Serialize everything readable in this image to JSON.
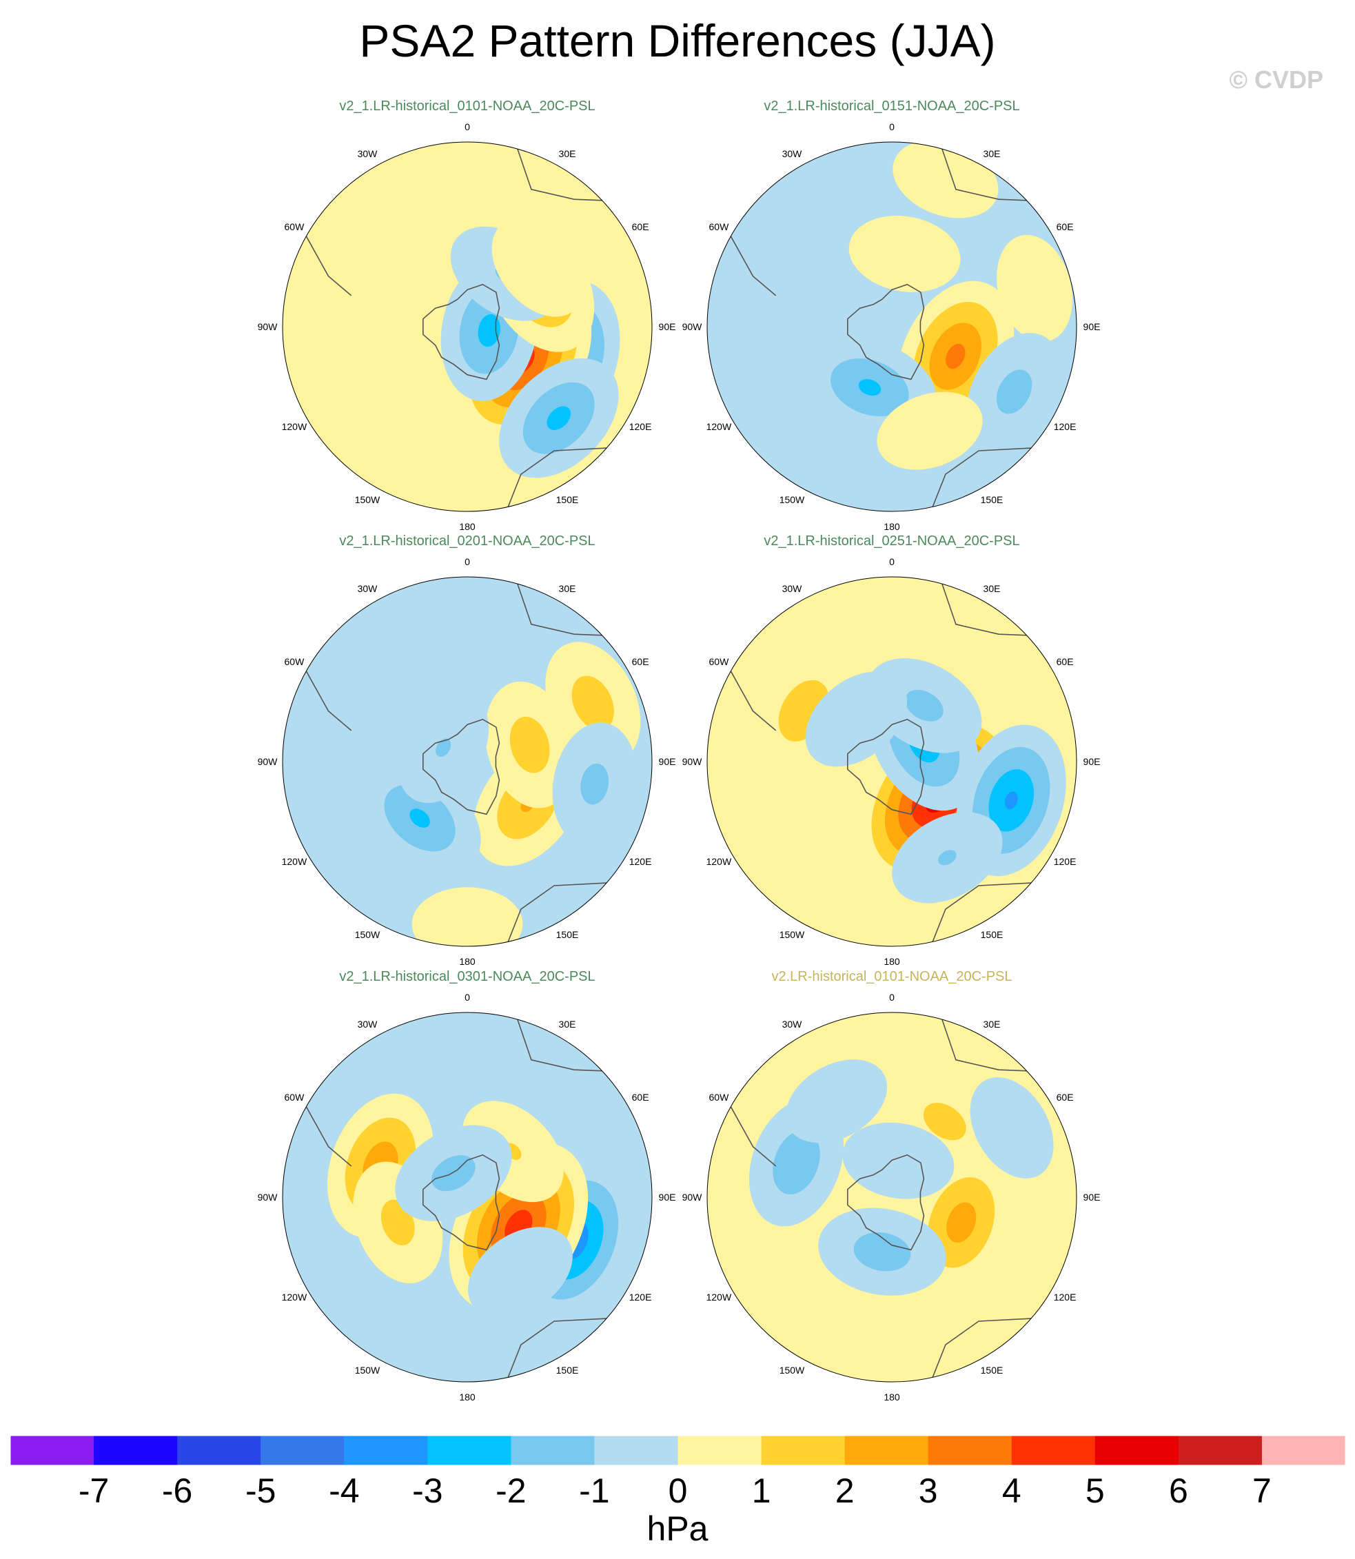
{
  "title": "PSA2 Pattern Differences (JJA)",
  "copyright": "© CVDP",
  "colors": {
    "panel_title_default": "#4a8a5a",
    "panel_title_obs": "#c6b45a",
    "land_outline": "#555555",
    "map_border": "#000000"
  },
  "longitude_labels": {
    "top": "0",
    "upper_left": "30W",
    "upper_right": "30E",
    "left_high": "60W",
    "right_high": "60E",
    "left_mid": "90W",
    "right_mid": "90E",
    "left_low": "120W",
    "right_low": "120E",
    "lower_left": "150W",
    "lower_right": "150E",
    "bottom": "180"
  },
  "colorbar": {
    "units": "hPa",
    "ticks": [
      "-7",
      "-6",
      "-5",
      "-4",
      "-3",
      "-2",
      "-1",
      "0",
      "1",
      "2",
      "3",
      "4",
      "5",
      "6",
      "7"
    ],
    "colors": [
      "#8a1cf0",
      "#1e05ff",
      "#2847e6",
      "#3478ea",
      "#1e96ff",
      "#00c3ff",
      "#78c8f0",
      "#b4dcf0",
      "#fff5a0",
      "#ffd230",
      "#ffaa0a",
      "#ff780a",
      "#ff3205",
      "#e60000",
      "#cd1e1e",
      "#ffb4b4"
    ]
  },
  "chart_data": {
    "type": "heatmap",
    "description_units": "hPa",
    "projection": "south-polar stereographic",
    "panels": [
      {
        "title": "v2_1.LR-historical_0101-NOAA_20C-PSL",
        "background": 0.5,
        "features": [
          {
            "lon": 108,
            "colat": 0.55,
            "value": -3.6
          },
          {
            "lon": 120,
            "colat": 0.35,
            "value": 4.8
          },
          {
            "lon": 100,
            "colat": 0.12,
            "value": -2.6
          },
          {
            "lon": 60,
            "colat": 0.45,
            "value": 2.7
          },
          {
            "lon": 35,
            "colat": 0.35,
            "value": -1.2
          },
          {
            "lon": 135,
            "colat": 0.7,
            "value": -2.5
          },
          {
            "lon": 50,
            "colat": 0.5,
            "value": 0.8
          }
        ]
      },
      {
        "title": "v2_1.LR-historical_0151-NOAA_20C-PSL",
        "background": -0.5,
        "features": [
          {
            "lon": 75,
            "colat": 0.8,
            "value": 0.6
          },
          {
            "lon": 20,
            "colat": 0.85,
            "value": 0.6
          },
          {
            "lon": 115,
            "colat": 0.38,
            "value": 3.6
          },
          {
            "lon": 200,
            "colat": 0.35,
            "value": -2.4
          },
          {
            "lon": 118,
            "colat": 0.75,
            "value": -1.6
          },
          {
            "lon": 10,
            "colat": 0.4,
            "value": 0.8
          },
          {
            "lon": 160,
            "colat": 0.6,
            "value": 0.6
          }
        ]
      },
      {
        "title": "v2_1.LR-historical_0201-NOAA_20C-PSL",
        "background": -0.5,
        "features": [
          {
            "lon": 125,
            "colat": 0.4,
            "value": 2.3
          },
          {
            "lon": 220,
            "colat": 0.4,
            "value": -2.4
          },
          {
            "lon": 75,
            "colat": 0.35,
            "value": 1.8
          },
          {
            "lon": 65,
            "colat": 0.75,
            "value": 1.8
          },
          {
            "lon": 100,
            "colat": 0.7,
            "value": -1.5
          },
          {
            "lon": 180,
            "colat": 0.88,
            "value": 0.7
          },
          {
            "lon": 300,
            "colat": 0.15,
            "value": -1.2
          }
        ]
      },
      {
        "title": "v2_1.LR-historical_0251-NOAA_20C-PSL",
        "background": 0.5,
        "features": [
          {
            "lon": 128,
            "colat": 0.32,
            "value": 6.0
          },
          {
            "lon": 108,
            "colat": 0.68,
            "value": -3.4
          },
          {
            "lon": 300,
            "colat": 0.55,
            "value": 2.0
          },
          {
            "lon": 60,
            "colat": 0.2,
            "value": -2.8
          },
          {
            "lon": 30,
            "colat": 0.35,
            "value": -1.5
          },
          {
            "lon": 150,
            "colat": 0.6,
            "value": -1.2
          },
          {
            "lon": 320,
            "colat": 0.3,
            "value": -1.0
          }
        ]
      },
      {
        "title": "v2_1.LR-historical_0301-NOAA_20C-PSL",
        "background": -0.5,
        "features": [
          {
            "lon": 112,
            "colat": 0.62,
            "value": -4.0
          },
          {
            "lon": 120,
            "colat": 0.32,
            "value": 5.0
          },
          {
            "lon": 290,
            "colat": 0.5,
            "value": 3.0
          },
          {
            "lon": 250,
            "colat": 0.4,
            "value": 1.6
          },
          {
            "lon": 45,
            "colat": 0.35,
            "value": 1.2
          },
          {
            "lon": 330,
            "colat": 0.15,
            "value": -1.6
          },
          {
            "lon": 145,
            "colat": 0.5,
            "value": -1.0
          }
        ]
      },
      {
        "title": "v2.LR-historical_0101-NOAA_20C-PSL",
        "background": 0.5,
        "features": [
          {
            "lon": 110,
            "colat": 0.4,
            "value": 2.8
          },
          {
            "lon": 290,
            "colat": 0.55,
            "value": -2.0
          },
          {
            "lon": 35,
            "colat": 0.5,
            "value": 1.6
          },
          {
            "lon": 190,
            "colat": 0.3,
            "value": -1.8
          },
          {
            "lon": 330,
            "colat": 0.6,
            "value": -0.6
          },
          {
            "lon": 60,
            "colat": 0.75,
            "value": -0.6
          },
          {
            "lon": 10,
            "colat": 0.2,
            "value": -0.8
          }
        ]
      }
    ]
  }
}
